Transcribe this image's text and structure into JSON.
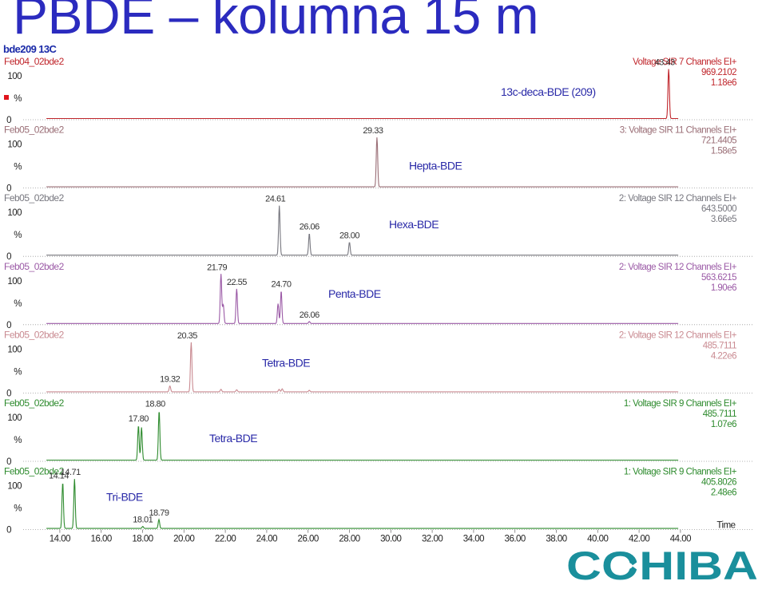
{
  "page": {
    "title": "PBDE – kolumna 15 m",
    "trace_title": "bde209 13C",
    "logo_text": "COHIBA"
  },
  "chart_data": {
    "type": "line",
    "xlabel": "Time",
    "xlim": [
      12.6,
      46.0
    ],
    "x_ticks": [
      "14.00",
      "16.00",
      "18.00",
      "20.00",
      "22.00",
      "24.00",
      "26.00",
      "28.00",
      "30.00",
      "32.00",
      "34.00",
      "36.00",
      "38.00",
      "40.00",
      "42.00",
      "44.00"
    ],
    "y_ticks": [
      "0",
      "100"
    ],
    "y_unit": "%",
    "panels": [
      {
        "file": "Feb04_02bde2",
        "color": "#c0262c",
        "header": [
          "Voltage SIR 7 Channels EI+",
          "969.2102",
          "1.18e6"
        ],
        "compound": "13c-deca-BDE (209)",
        "peaks": [
          {
            "rt": 43.43,
            "height": 100,
            "label": "43.43"
          }
        ]
      },
      {
        "file": "Feb05_02bde2",
        "color": "#9a6e76",
        "header": [
          "3: Voltage SIR 11 Channels EI+",
          "721.4405",
          "1.58e5"
        ],
        "compound": "Hepta-BDE",
        "peaks": [
          {
            "rt": 29.33,
            "height": 100,
            "label": "29.33"
          }
        ]
      },
      {
        "file": "Feb05_02bde2",
        "color": "#77777f",
        "header": [
          "2: Voltage SIR 12 Channels EI+",
          "643.5000",
          "3.66e5"
        ],
        "compound": "Hexa-BDE",
        "peaks": [
          {
            "rt": 24.61,
            "height": 100,
            "label": "24.61"
          },
          {
            "rt": 26.06,
            "height": 44,
            "label": "26.06"
          },
          {
            "rt": 28.0,
            "height": 26,
            "label": "28.00"
          }
        ]
      },
      {
        "file": "Feb05_02bde2",
        "color": "#9b5aa6",
        "header": [
          "2: Voltage SIR 12 Channels EI+",
          "563.6215",
          "1.90e6"
        ],
        "compound": "Penta-BDE",
        "peaks": [
          {
            "rt": 21.79,
            "height": 100,
            "label": "21.79"
          },
          {
            "rt": 21.9,
            "height": 38,
            "label": ""
          },
          {
            "rt": 22.55,
            "height": 70,
            "label": "22.55"
          },
          {
            "rt": 24.55,
            "height": 40,
            "label": ""
          },
          {
            "rt": 24.7,
            "height": 66,
            "label": "24.70"
          },
          {
            "rt": 26.06,
            "height": 4,
            "label": "26.06"
          }
        ]
      },
      {
        "file": "Feb05_02bde2",
        "color": "#c98a91",
        "header": [
          "2: Voltage SIR 12 Channels EI+",
          "485.7111",
          "4.22e6"
        ],
        "compound": "Tetra-BDE",
        "peaks": [
          {
            "rt": 19.32,
            "height": 12,
            "label": "19.32"
          },
          {
            "rt": 20.35,
            "height": 100,
            "label": "20.35"
          },
          {
            "rt": 21.79,
            "height": 5,
            "label": ""
          },
          {
            "rt": 22.55,
            "height": 4,
            "label": ""
          },
          {
            "rt": 24.6,
            "height": 5,
            "label": ""
          },
          {
            "rt": 24.75,
            "height": 6,
            "label": ""
          },
          {
            "rt": 26.06,
            "height": 3,
            "label": ""
          }
        ]
      },
      {
        "file": "Feb05_02bde2",
        "color": "#2e8b2e",
        "header": [
          "1: Voltage SIR 9 Channels EI+",
          "485.7111",
          "1.07e6"
        ],
        "compound": "Tetra-BDE",
        "peaks": [
          {
            "rt": 17.8,
            "height": 70,
            "label": "17.80"
          },
          {
            "rt": 17.95,
            "height": 66,
            "label": ""
          },
          {
            "rt": 18.8,
            "height": 100,
            "label": "18.80"
          }
        ]
      },
      {
        "file": "Feb05_02bde2",
        "color": "#2e8b2e",
        "header": [
          "1: Voltage SIR 9 Channels EI+",
          "405.8026",
          "2.48e6"
        ],
        "compound": "Tri-BDE",
        "peaks": [
          {
            "rt": 14.14,
            "height": 93,
            "label": "14.14"
          },
          {
            "rt": 14.71,
            "height": 100,
            "label": "14.71"
          },
          {
            "rt": 18.01,
            "height": 4,
            "label": "18.01"
          },
          {
            "rt": 18.79,
            "height": 18,
            "label": "18.79"
          }
        ]
      }
    ]
  }
}
